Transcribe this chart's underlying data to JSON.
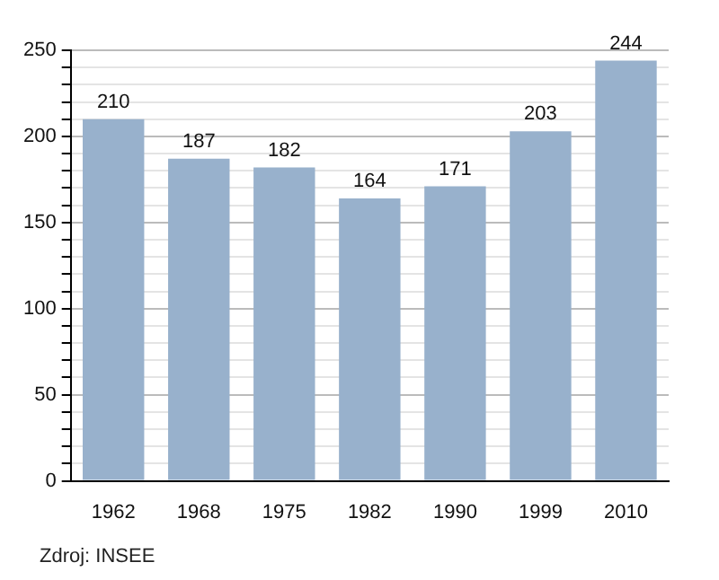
{
  "chart_data": {
    "type": "bar",
    "categories": [
      "1962",
      "1968",
      "1975",
      "1982",
      "1990",
      "1999",
      "2010"
    ],
    "values": [
      210,
      187,
      182,
      164,
      171,
      203,
      244
    ],
    "color": "#98b1cc",
    "data_labels": true,
    "grid": "y",
    "ylim": [
      0,
      250
    ],
    "yticks": [
      0,
      {
        "value": 10,
        "label": null
      },
      {
        "value": 20,
        "label": null
      },
      {
        "value": 30,
        "label": null
      },
      {
        "value": 40,
        "label": null
      },
      50,
      {
        "value": 60,
        "label": null
      },
      {
        "value": 70,
        "label": null
      },
      {
        "value": 80,
        "label": null
      },
      {
        "value": 90,
        "label": null
      },
      100,
      {
        "value": 110,
        "label": null
      },
      {
        "value": 120,
        "label": null
      },
      {
        "value": 130,
        "label": null
      },
      {
        "value": 140,
        "label": null
      },
      150,
      {
        "value": 160,
        "label": null
      },
      {
        "value": 170,
        "label": null
      },
      {
        "value": 180,
        "label": null
      },
      {
        "value": 190,
        "label": null
      },
      200,
      {
        "value": 210,
        "label": null
      },
      {
        "value": 220,
        "label": null
      },
      {
        "value": 230,
        "label": null
      },
      {
        "value": 240,
        "label": null
      },
      250
    ],
    "annotations": [
      "Zdroj: INSEE"
    ]
  }
}
